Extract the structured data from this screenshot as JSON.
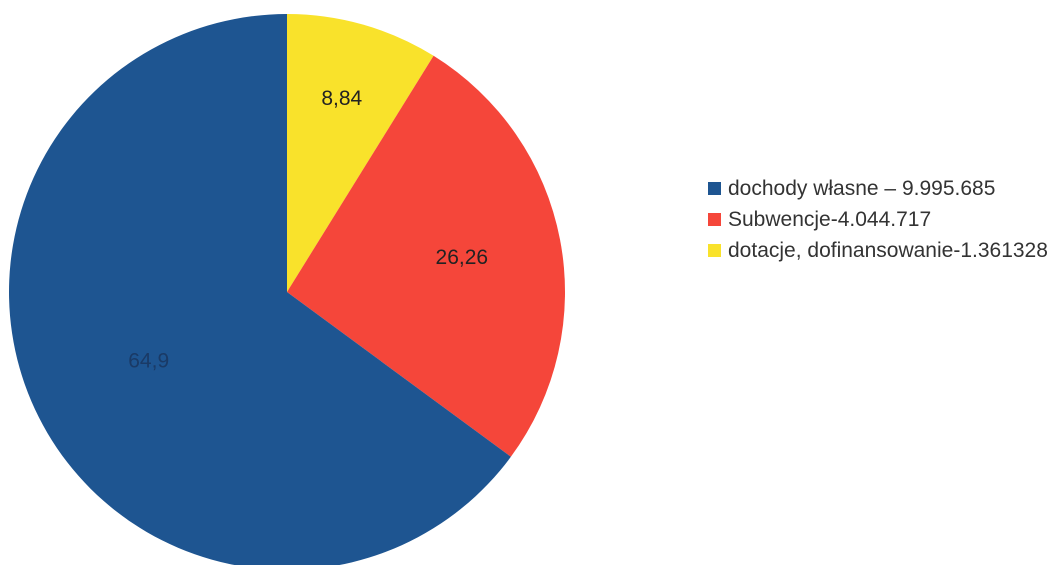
{
  "chart_data": {
    "type": "pie",
    "start_angle_deg": 0,
    "direction": "clockwise",
    "slices": [
      {
        "label": "dotacje, dofinansowanie-1.361328",
        "value": 8.84,
        "data_label": "8,84",
        "color": "#F9E22B",
        "label_color": "#222222"
      },
      {
        "label": "Subwencje-4.044.717",
        "value": 26.26,
        "data_label": "26,26",
        "color": "#F5463A",
        "label_color": "#222222"
      },
      {
        "label": "dochody własne – 9.995.685",
        "value": 64.9,
        "data_label": "64,9",
        "color": "#1E5591",
        "label_color": "#1a3a66"
      }
    ],
    "legend": {
      "placement": "right",
      "items": [
        {
          "text": "dochody własne – 9.995.685",
          "color": "#1E5591"
        },
        {
          "text": "Subwencje-4.044.717",
          "color": "#F5463A"
        },
        {
          "text": "dotacje, dofinansowanie-1.361328",
          "color": "#F9E22B"
        }
      ]
    }
  }
}
